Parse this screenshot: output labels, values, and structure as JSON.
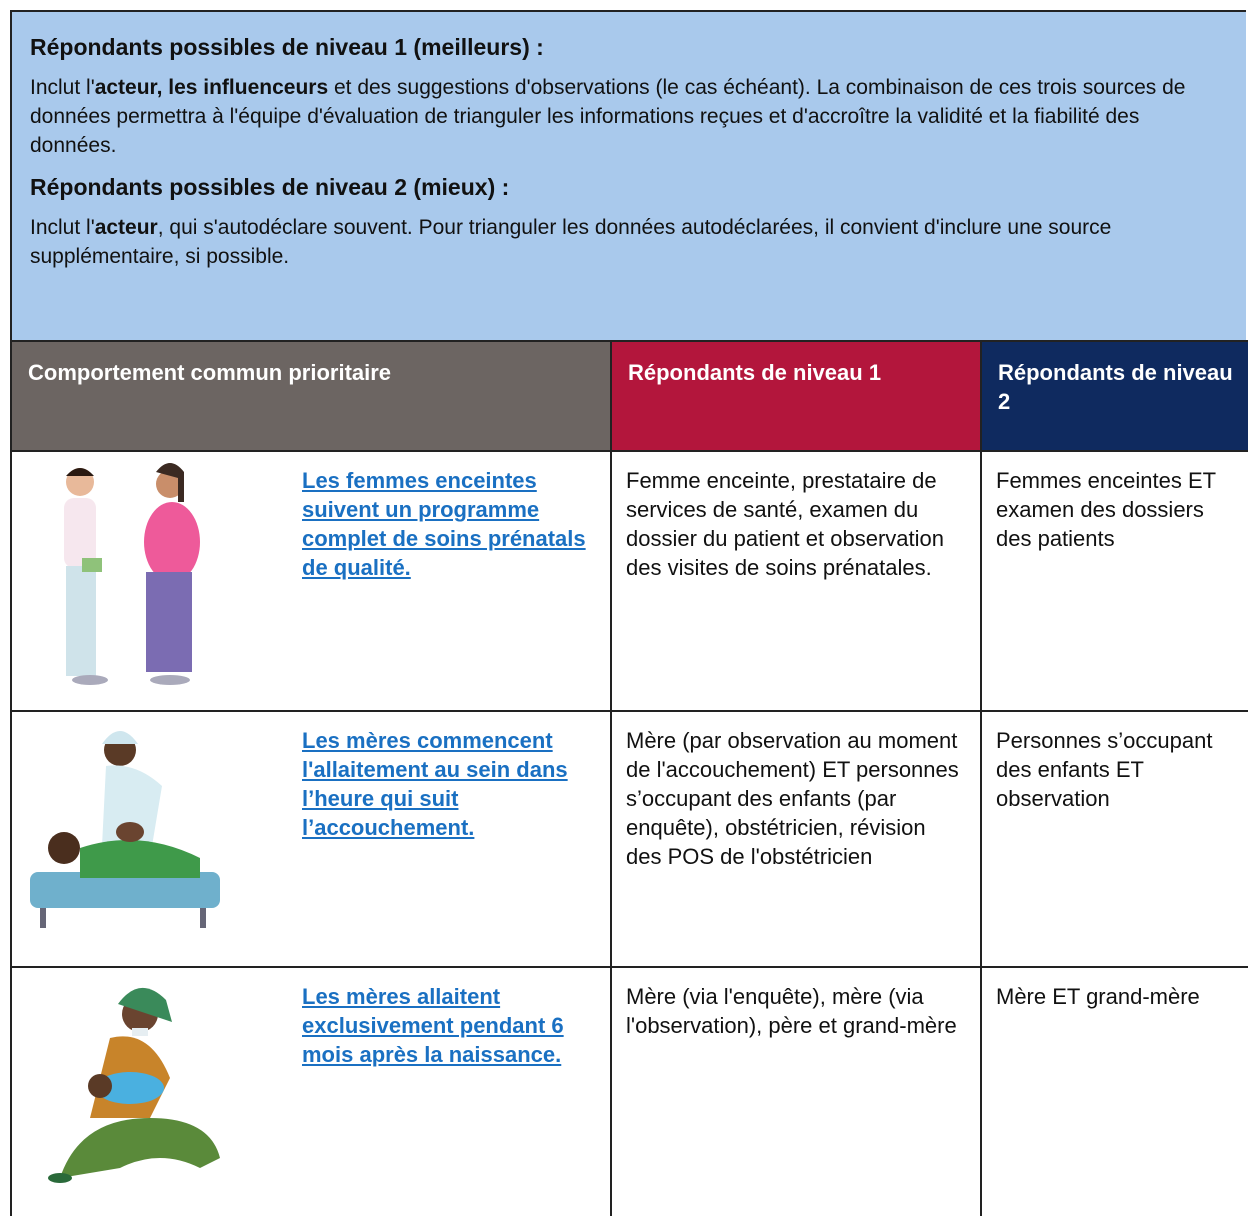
{
  "intro": {
    "level1": {
      "title": "Répondants possibles de niveau 1 (meilleurs) :",
      "text_parts": [
        "Inclut l'",
        "acteur, les influenceurs",
        " et des suggestions d'observations (le cas échéant). La combinaison de ces trois sources de données permettra à l'équipe d'évaluation de trianguler les informations reçues et d'accroître la validité et la fiabilité des données."
      ]
    },
    "level2": {
      "title": "Répondants possibles de niveau 2 (mieux) :",
      "text_parts": [
        "Inclut l'",
        "acteur",
        ", qui s'autodéclare souvent. Pour trianguler les données autodéclarées, il convient d'inclure une source supplémentaire, si possible."
      ]
    }
  },
  "table": {
    "headers": [
      "Comportement commun prioritaire",
      "Répondants de niveau 1",
      "Répondants de niveau 2"
    ],
    "rows": [
      [
        "Les femmes enceintes suivent un programme complet de soins prénatals de qualité.",
        "Femme enceinte, prestataire de services de santé, examen du dossier du patient et observation des visites de soins prénatales.",
        "Femmes enceintes ET examen des dossiers des patients"
      ],
      [
        "Les mères commencent l'allaitement au sein dans l’heure qui suit l’accouchement.",
        "Mère (par observation au moment de l'accouchement) ET personnes s’occupant des enfants (par enquête), obstétricien, révision des POS de l'obstétricien",
        "Personnes s’occupant des enfants ET observation"
      ],
      [
        "Les mères allaitent exclusivement pendant 6 mois après la naissance.",
        "Mère (via l'enquête), mère (via l'observation), père et grand-mère",
        "Mère ET grand-mère"
      ]
    ]
  }
}
